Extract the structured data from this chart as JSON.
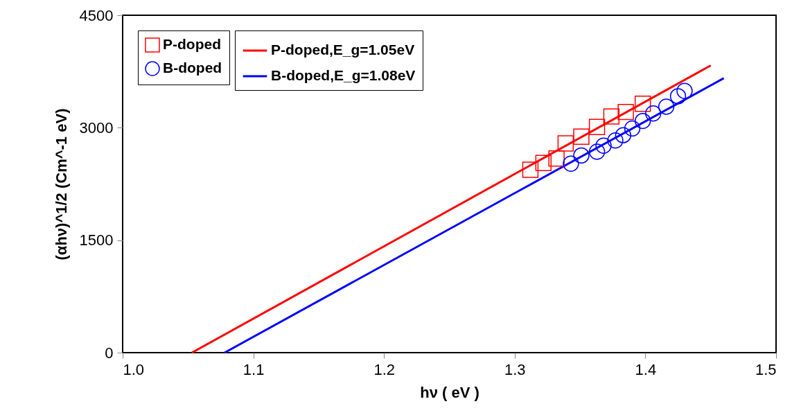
{
  "chart_data": {
    "type": "line",
    "xlabel": "hν ( eV )",
    "ylabel": "(αhν)^1/2 (Cm^-1 eV)",
    "xlim": [
      1.0,
      1.5
    ],
    "xticks": [
      {
        "value": 1.0,
        "label": "1.0"
      },
      {
        "value": 1.1,
        "label": "1.1"
      },
      {
        "value": 1.2,
        "label": "1.2"
      },
      {
        "value": 1.3,
        "label": "1.3"
      },
      {
        "value": 1.4,
        "label": "1.4"
      },
      {
        "value": 1.5,
        "label": "1.5"
      }
    ],
    "ylim": [
      0,
      4500
    ],
    "yticks": [
      0,
      1500,
      3000,
      4500
    ],
    "legend": "top left",
    "series": [
      {
        "name": "P-doped,E_g=1.05eV",
        "color": "#ff0000",
        "line_style": "solid",
        "x": [
          1.053,
          1.45
        ],
        "values": [
          0,
          3830
        ]
      },
      {
        "name": "P-doped",
        "type": "scatter",
        "marker": "square",
        "color": "#ff0000",
        "x": [
          1.312,
          1.322,
          1.332,
          1.339,
          1.351,
          1.363,
          1.374,
          1.385,
          1.398
        ],
        "values": [
          2440,
          2530,
          2590,
          2790,
          2880,
          3010,
          3150,
          3210,
          3320
        ]
      },
      {
        "name": "B-doped,E_g=1.08eV",
        "color": "#0000ff",
        "line_style": "solid",
        "x": [
          1.078,
          1.46
        ],
        "values": [
          0,
          3660
        ]
      },
      {
        "name": "B-doped",
        "type": "scatter",
        "marker": "circle",
        "color": "#0000ff",
        "x": [
          1.343,
          1.351,
          1.363,
          1.368,
          1.377,
          1.383,
          1.39,
          1.398,
          1.406,
          1.416,
          1.425,
          1.43
        ],
        "values": [
          2520,
          2630,
          2680,
          2760,
          2830,
          2900,
          2990,
          3090,
          3190,
          3280,
          3420,
          3490
        ]
      }
    ]
  }
}
